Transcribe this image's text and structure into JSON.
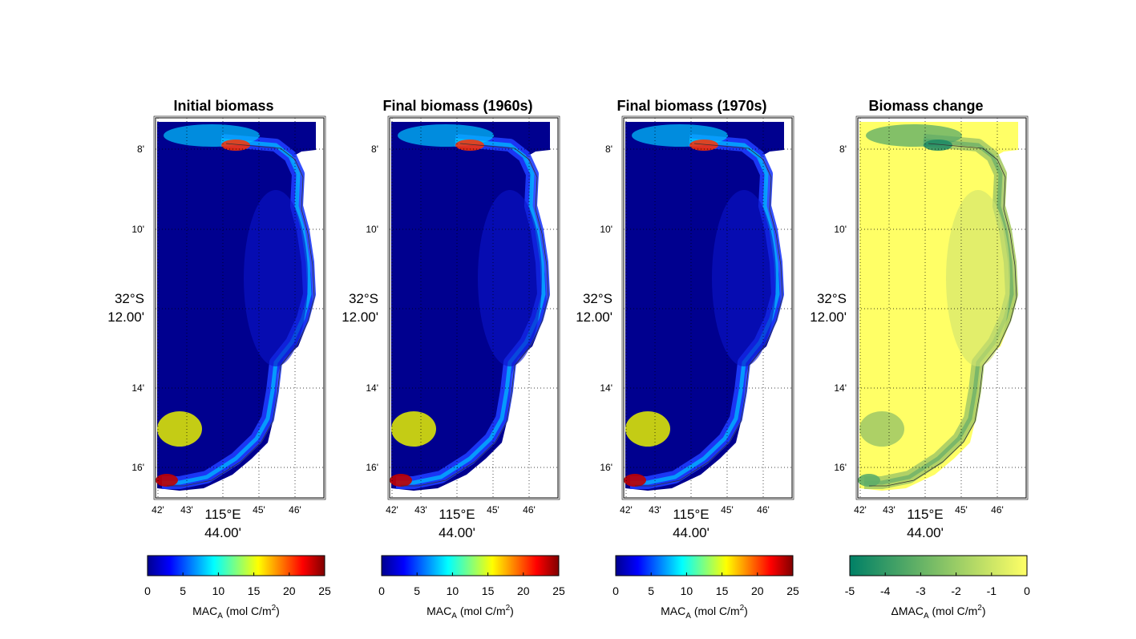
{
  "panels": [
    {
      "title": "Initial biomass",
      "kind": "abs"
    },
    {
      "title": "Final biomass (1960s)",
      "kind": "abs"
    },
    {
      "title": "Final biomass (1970s)",
      "kind": "abs"
    },
    {
      "title": "Biomass change",
      "kind": "diff"
    }
  ],
  "lat_ticks": [
    "8'",
    "10'",
    "12.00'",
    "14'",
    "16'"
  ],
  "lat_degree_label": "32°S",
  "lon_ticks": [
    "42'",
    "43'",
    "44.00'",
    "45'",
    "46'"
  ],
  "lon_degree_label": "115°E",
  "colorbars": [
    {
      "ticks": [
        "0",
        "5",
        "10",
        "15",
        "20",
        "25"
      ],
      "label": "MAC",
      "label_sub": "A",
      "label_unit": "(mol C/m",
      "label_sup": "2",
      "label_close": ")",
      "colormap": "jet"
    },
    {
      "ticks": [
        "0",
        "5",
        "10",
        "15",
        "20",
        "25"
      ],
      "label": "MAC",
      "label_sub": "A",
      "label_unit": "(mol C/m",
      "label_sup": "2",
      "label_close": ")",
      "colormap": "jet"
    },
    {
      "ticks": [
        "0",
        "5",
        "10",
        "15",
        "20",
        "25"
      ],
      "label": "MAC",
      "label_sub": "A",
      "label_unit": "(mol C/m",
      "label_sup": "2",
      "label_close": ")",
      "colormap": "jet"
    },
    {
      "ticks": [
        "-5",
        "-4",
        "-3",
        "-2",
        "-1",
        "0"
      ],
      "label": "ΔMAC",
      "label_sub": "A",
      "label_unit": "(mol C/m",
      "label_sup": "2",
      "label_close": ")",
      "colormap": "summer"
    }
  ],
  "colors": {
    "deep_blue": "#00008F",
    "jet_stops": [
      "#00008F",
      "#0000FF",
      "#00FFFF",
      "#FFFF00",
      "#FF0000",
      "#800000"
    ],
    "summer_stops": [
      "#008066",
      "#FFFF66"
    ]
  }
}
